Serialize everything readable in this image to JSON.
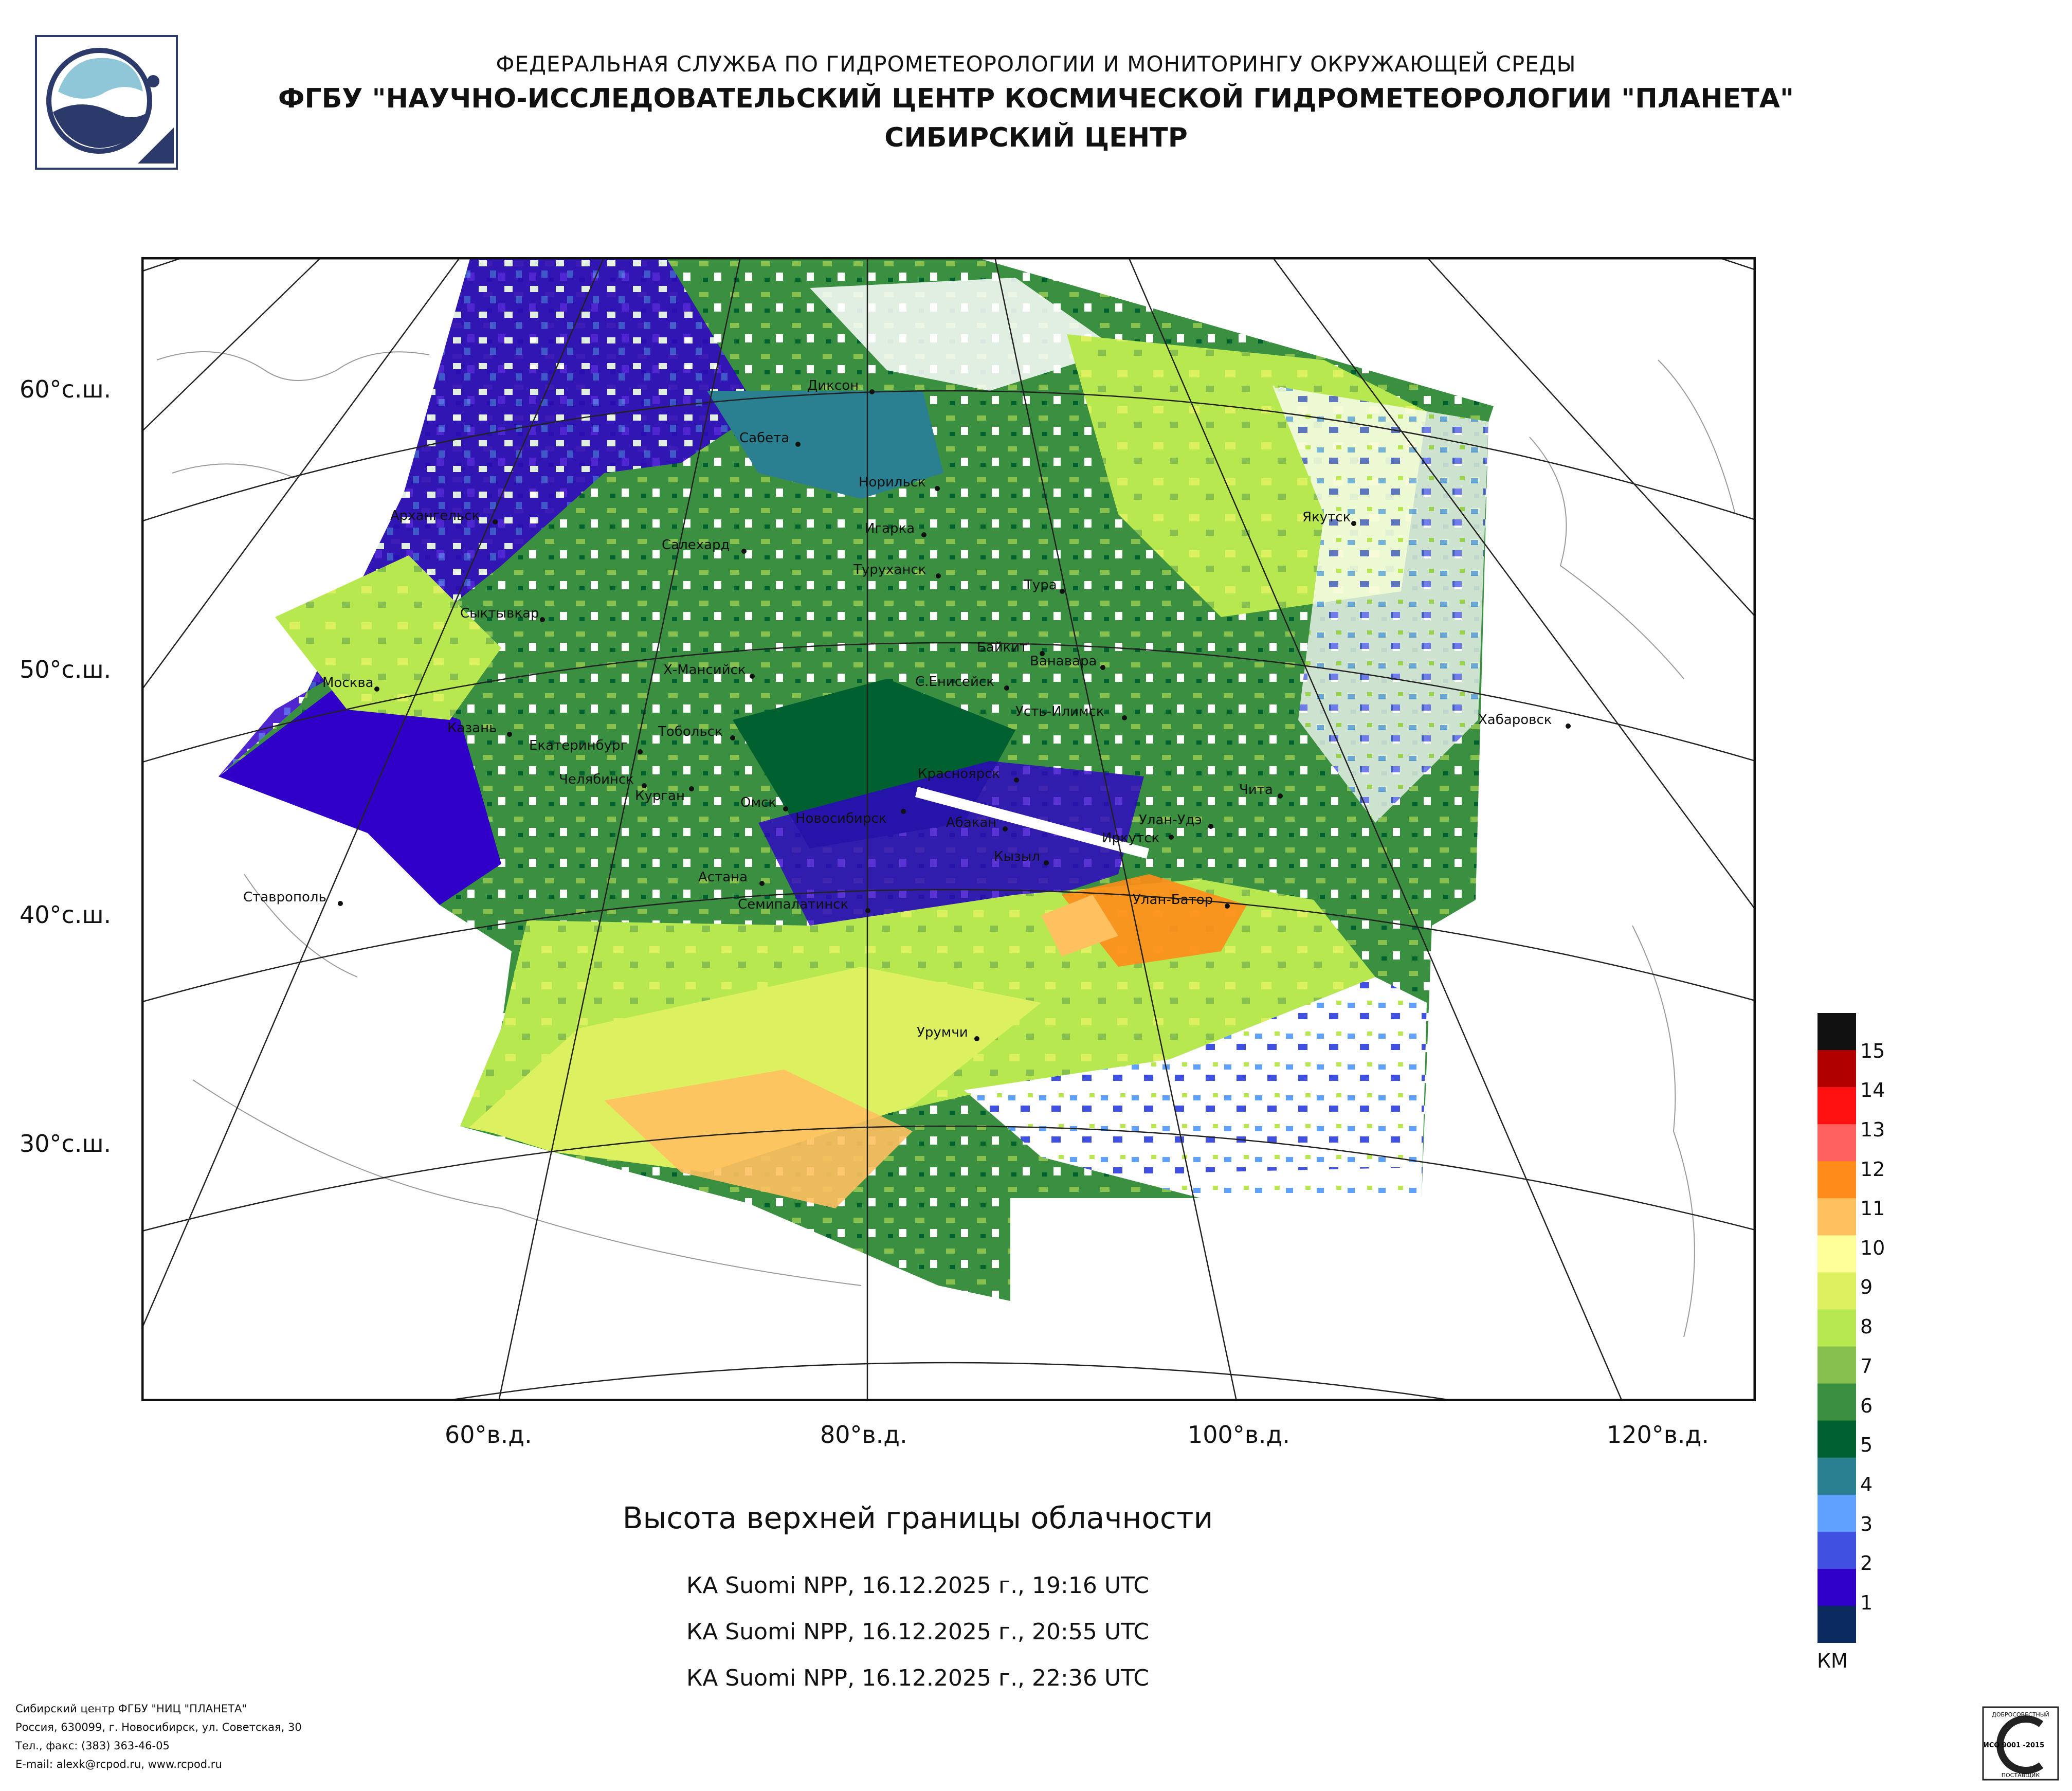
{
  "header": {
    "line1": "ФЕДЕРАЛЬНАЯ СЛУЖБА ПО ГИДРОМЕТЕОРОЛОГИИ И МОНИТОРИНГУ ОКРУЖАЮЩЕЙ СРЕДЫ",
    "line2": "ФГБУ \"НАУЧНО-ИССЛЕДОВАТЕЛЬСКИЙ ЦЕНТР КОСМИЧЕСКОЙ ГИДРОМЕТЕОРОЛОГИИ \"ПЛАНЕТА\"",
    "line3": "СИБИРСКИЙ ЦЕНТР"
  },
  "latitudes": [
    "60°с.ш.",
    "50°с.ш.",
    "40°с.ш.",
    "30°с.ш."
  ],
  "longitudes": [
    "60°в.д.",
    "80°в.д.",
    "100°в.д.",
    "120°в.д."
  ],
  "cities": [
    "Диксон",
    "Сабета",
    "Норильск",
    "Архангельск",
    "Игарка",
    "Салехард",
    "Туруханск",
    "Якутск",
    "Тура",
    "Сыктывкар",
    "Байкит",
    "Ванавара",
    "Х-Мансийск",
    "С.Енисейск",
    "Москва",
    "Усть-Илимск",
    "Казань",
    "Тобольск",
    "Хабаровск",
    "Екатеринбург",
    "Челябинск",
    "Красноярск",
    "Курган",
    "Чита",
    "Омск",
    "Новосибирск",
    "Абакан",
    "Улан-Удэ",
    "Иркутск",
    "Кызыл",
    "Астана",
    "Ставрополь",
    "Семипалатинск",
    "Улан-Батор",
    "Урумчи"
  ],
  "title": "Высота верхней границы облачности",
  "passes": [
    "КА Suomi NPP, 16.12.2025 г., 19:16 UTC",
    "КА Suomi NPP, 16.12.2025 г., 20:55 UTC",
    "КА Suomi NPP, 16.12.2025 г., 22:36 UTC"
  ],
  "legend": {
    "unit": "КМ",
    "labels": [
      "15",
      "14",
      "13",
      "12",
      "11",
      "10",
      "9",
      "8",
      "7",
      "6",
      "5",
      "4",
      "3",
      "2",
      "1"
    ],
    "colors": [
      "#111111",
      "#b00000",
      "#ff1010",
      "#ff6060",
      "#ff8c1a",
      "#ffc060",
      "#ffff99",
      "#ddf060",
      "#b8e850",
      "#88c050",
      "#3a9040",
      "#006030",
      "#2a8090",
      "#60a0ff",
      "#4050e0",
      "#3000c8",
      "#0a2a60"
    ]
  },
  "footer": {
    "line1": "Сибирский центр ФГБУ \"НИЦ \"ПЛАНЕТА\"",
    "line2": "Россия, 630099, г. Новосибирск, ул. Советская, 30",
    "line3": "Тел., факс: (383) 363-46-05",
    "line4": "E-mail: alexk@rcpod.ru, www.rcpod.ru"
  },
  "cert": {
    "top": "ДОБРОСОВЕСТНЫЙ",
    "code": "ИСО 9001 -2015",
    "bottom": "ПОСТАВЩИК"
  }
}
